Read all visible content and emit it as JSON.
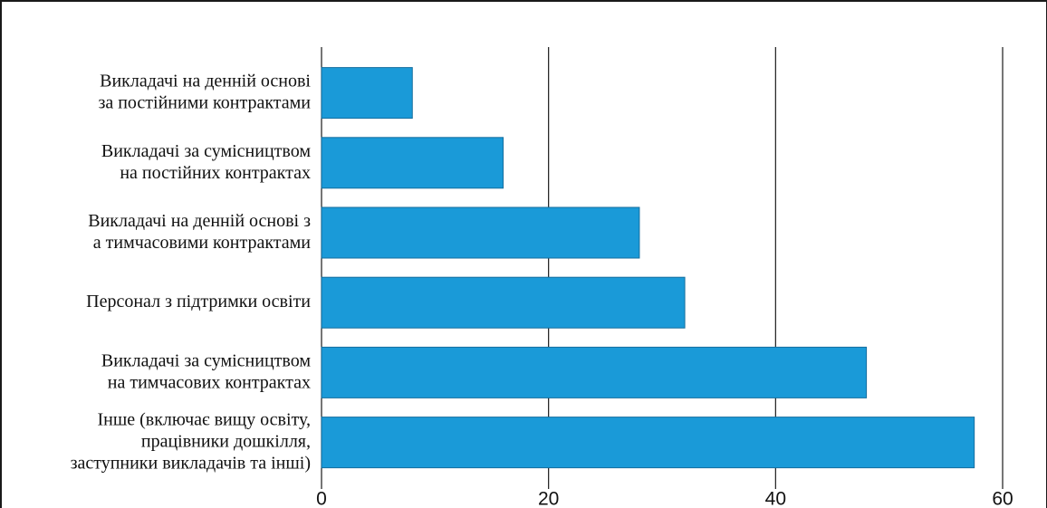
{
  "chart_data": {
    "type": "bar",
    "orientation": "horizontal",
    "title": "",
    "xlabel": "",
    "ylabel": "",
    "categories": [
      [
        "Викладачі на денній основі",
        "за постійними контрактами"
      ],
      [
        "Викладачі за сумісництвом",
        "на постійних контрактах"
      ],
      [
        "Викладачі на денній основі з",
        "а тимчасовими контрактами"
      ],
      [
        "Персонал з підтримки освіти"
      ],
      [
        "Викладачі за сумісництвом",
        "на тимчасових контрактах"
      ],
      [
        "Інше (включає вищу освіту,",
        "працівники дошкілля,",
        "заступники викладачів та інші)"
      ]
    ],
    "values": [
      8,
      16,
      28,
      32,
      48,
      57.5
    ],
    "xlim": [
      0,
      60
    ],
    "xticks": [
      "0",
      "20",
      "40",
      "60"
    ],
    "grid": "vertical",
    "legend": "none",
    "bar_color": "#1a9ad8",
    "bar_edge_color": "#156e9e",
    "grid_color": "#1a1a1a"
  }
}
